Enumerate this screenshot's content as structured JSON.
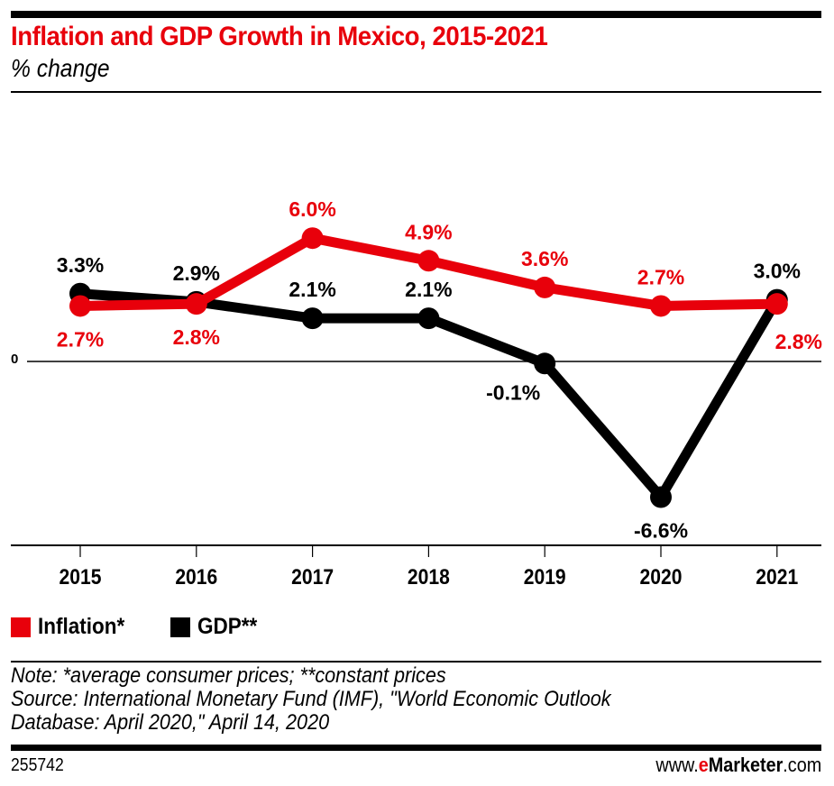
{
  "header": {
    "title": "Inflation and GDP Growth in Mexico, 2015-2021",
    "subtitle": "% change"
  },
  "colors": {
    "inflation": "#e8000b",
    "gdp": "#000000",
    "accent": "#e8000b"
  },
  "chart_data": {
    "type": "line",
    "title": "Inflation and GDP Growth in Mexico, 2015-2021",
    "subtitle": "% change",
    "xlabel": "",
    "ylabel": "% change",
    "categories": [
      "2015",
      "2016",
      "2017",
      "2018",
      "2019",
      "2020",
      "2021"
    ],
    "series": [
      {
        "name": "Inflation*",
        "color": "#e8000b",
        "values": [
          2.7,
          2.8,
          6.0,
          4.9,
          3.6,
          2.7,
          2.8
        ],
        "labels": [
          "2.7%",
          "2.8%",
          "6.0%",
          "4.9%",
          "3.6%",
          "2.7%",
          "2.8%"
        ],
        "label_positions": [
          "below",
          "below",
          "above",
          "above",
          "above",
          "above",
          "below-right"
        ]
      },
      {
        "name": "GDP**",
        "color": "#000000",
        "values": [
          3.3,
          2.9,
          2.1,
          2.1,
          -0.1,
          -6.6,
          3.0
        ],
        "labels": [
          "3.3%",
          "2.9%",
          "2.1%",
          "2.1%",
          "-0.1%",
          "-6.6%",
          "3.0%"
        ],
        "label_positions": [
          "above",
          "above",
          "above",
          "above",
          "below-left",
          "below",
          "above"
        ]
      }
    ],
    "y_axis_labels": [
      "0"
    ],
    "ylim": [
      -8.9,
      12.7
    ],
    "grid": false,
    "legend": {
      "position": "bottom-left"
    }
  },
  "legend": {
    "items": [
      {
        "label": "Inflation*",
        "color": "#e8000b"
      },
      {
        "label": "GDP**",
        "color": "#000000"
      }
    ]
  },
  "footer": {
    "note": "Note: *average consumer prices; **constant prices",
    "source_line1": "Source: International Monetary Fund (IMF), \"World Economic Outlook",
    "source_line2": "Database: April 2020,\" April 14, 2020",
    "chart_id": "255742",
    "brand_prefix": "www.",
    "brand_e": "e",
    "brand_name": "Marketer",
    "brand_suffix": ".com"
  }
}
